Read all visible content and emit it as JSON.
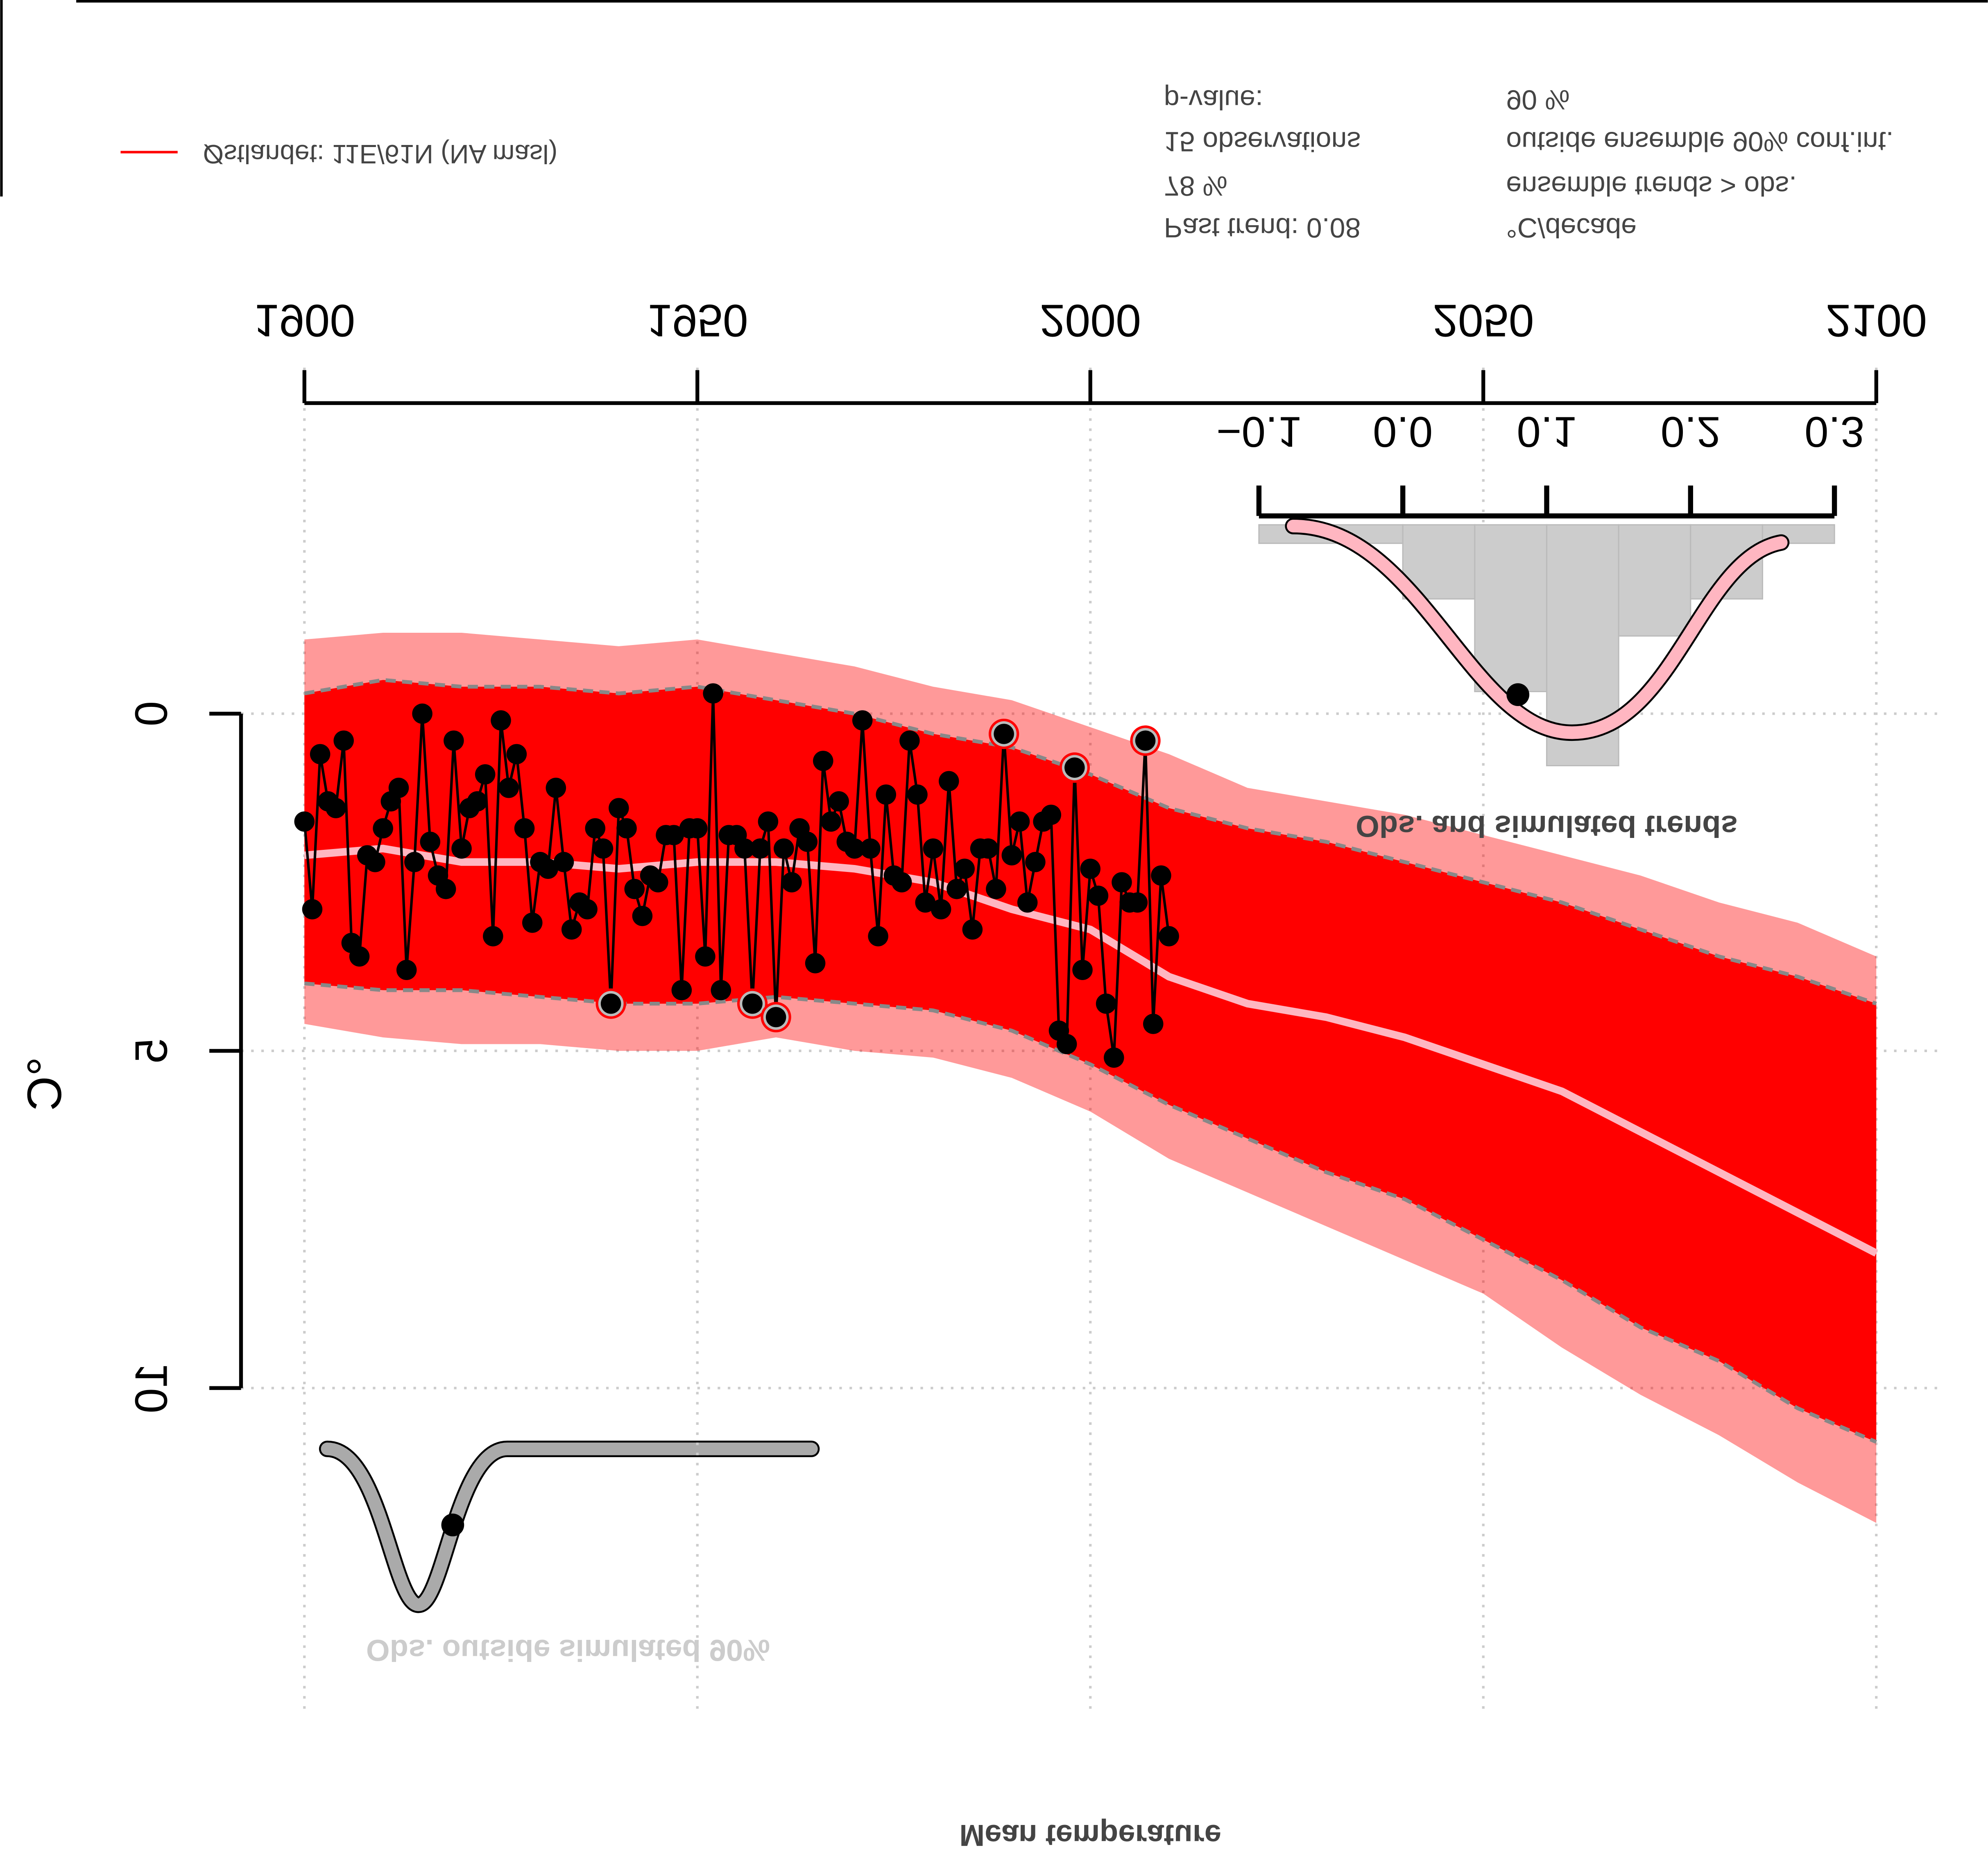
{
  "chart_data": {
    "type": "line",
    "title": "Mean temperature",
    "ylabel": "°C",
    "xlim": [
      1900,
      2100
    ],
    "xticks": [
      1900,
      1950,
      2000,
      2050,
      2100
    ],
    "ylim": [
      -5,
      15
    ],
    "yticks": [
      0,
      5,
      10
    ],
    "grid": true,
    "ensemble": {
      "name": "Østlandet: 11E/61N (NA masl)",
      "color": "#ff0000",
      "x": [
        1900,
        1910,
        1920,
        1930,
        1940,
        1950,
        1960,
        1970,
        1980,
        1990,
        2000,
        2010,
        2020,
        2030,
        2040,
        2050,
        2060,
        2070,
        2080,
        2090,
        2100
      ],
      "median": [
        2.1,
        2.0,
        2.2,
        2.2,
        2.3,
        2.2,
        2.2,
        2.3,
        2.5,
        2.9,
        3.2,
        3.9,
        4.3,
        4.5,
        4.8,
        5.2,
        5.6,
        6.2,
        6.8,
        7.4,
        8.0
      ],
      "lower": [
        -0.3,
        -0.5,
        -0.4,
        -0.4,
        -0.3,
        -0.4,
        -0.2,
        0.0,
        0.3,
        0.5,
        0.9,
        1.4,
        1.7,
        1.9,
        2.2,
        2.5,
        2.8,
        3.2,
        3.6,
        3.9,
        4.3
      ],
      "upper": [
        4.0,
        4.1,
        4.1,
        4.2,
        4.3,
        4.3,
        4.2,
        4.3,
        4.4,
        4.7,
        5.2,
        5.8,
        6.3,
        6.8,
        7.2,
        7.8,
        8.4,
        9.1,
        9.6,
        10.3,
        10.8
      ],
      "min": [
        -1.1,
        -1.2,
        -1.2,
        -1.1,
        -1.0,
        -1.1,
        -0.9,
        -0.7,
        -0.4,
        -0.2,
        0.2,
        0.6,
        1.1,
        1.3,
        1.5,
        1.8,
        2.1,
        2.4,
        2.8,
        3.1,
        3.6
      ],
      "max": [
        4.6,
        4.8,
        4.9,
        4.9,
        5.0,
        5.0,
        4.8,
        5.0,
        5.1,
        5.4,
        5.9,
        6.6,
        7.1,
        7.6,
        8.1,
        8.6,
        9.4,
        10.1,
        10.7,
        11.4,
        12.0
      ]
    },
    "observations": {
      "x": [
        1900,
        1901,
        1902,
        1903,
        1904,
        1905,
        1906,
        1907,
        1908,
        1909,
        1910,
        1911,
        1912,
        1913,
        1914,
        1915,
        1916,
        1917,
        1918,
        1919,
        1920,
        1921,
        1922,
        1923,
        1924,
        1925,
        1926,
        1927,
        1928,
        1929,
        1930,
        1931,
        1932,
        1933,
        1934,
        1935,
        1936,
        1937,
        1938,
        1939,
        1940,
        1941,
        1942,
        1943,
        1944,
        1945,
        1946,
        1947,
        1948,
        1949,
        1950,
        1951,
        1952,
        1953,
        1954,
        1955,
        1956,
        1957,
        1958,
        1959,
        1960,
        1961,
        1962,
        1963,
        1964,
        1965,
        1966,
        1967,
        1968,
        1969,
        1970,
        1971,
        1972,
        1973,
        1974,
        1975,
        1976,
        1977,
        1978,
        1979,
        1980,
        1981,
        1982,
        1983,
        1984,
        1985,
        1986,
        1987,
        1988,
        1989,
        1990,
        1991,
        1992,
        1993,
        1994,
        1995,
        1996,
        1997,
        1998,
        1999,
        2000,
        2001,
        2002,
        2003,
        2004,
        2005,
        2006,
        2007,
        2008,
        2009,
        2010
      ],
      "values": [
        1.6,
        2.9,
        0.6,
        1.3,
        1.4,
        0.4,
        3.4,
        3.6,
        2.1,
        2.2,
        1.7,
        1.3,
        1.1,
        3.8,
        2.2,
        0.0,
        1.9,
        2.4,
        2.6,
        0.4,
        2.0,
        1.4,
        1.3,
        0.9,
        3.3,
        0.1,
        1.1,
        0.6,
        1.7,
        3.1,
        2.2,
        2.3,
        1.1,
        2.2,
        3.2,
        2.8,
        2.9,
        1.7,
        2.0,
        4.3,
        1.4,
        1.7,
        2.6,
        3.0,
        2.4,
        2.5,
        1.8,
        1.8,
        4.1,
        1.7,
        1.7,
        3.6,
        -0.3,
        4.1,
        1.8,
        1.8,
        2.0,
        4.3,
        2.0,
        1.6,
        4.5,
        2.0,
        2.5,
        1.7,
        1.9,
        3.7,
        0.7,
        1.6,
        1.3,
        1.9,
        2.0,
        0.1,
        2.0,
        3.3,
        1.2,
        2.4,
        2.5,
        0.4,
        1.2,
        2.8,
        2.0,
        2.9,
        1.0,
        2.6,
        2.3,
        3.2,
        2.0,
        2.0,
        2.6,
        0.3,
        2.1,
        1.6,
        2.8,
        2.2,
        1.6,
        1.5,
        4.7,
        4.9,
        0.8,
        3.8,
        2.3,
        2.7,
        4.3,
        5.1,
        2.5,
        2.8,
        2.8,
        0.4,
        4.6,
        2.4,
        3.3
      ]
    },
    "inset": {
      "type": "histogram",
      "title": "Obs. and simulated trends",
      "bins": [
        -0.1,
        0.0,
        0.05,
        0.1,
        0.15,
        0.2,
        0.25,
        0.3
      ],
      "values": [
        1,
        4,
        9,
        13,
        6,
        4,
        1
      ],
      "color": "#cccccc",
      "xlim": [
        -0.1,
        0.3
      ],
      "xticks": [
        {
          "value": -0.1,
          "label": "−0.1"
        },
        {
          "value": 0,
          "label": "0.0"
        },
        0.1,
        0.2,
        0.3
      ],
      "past_trend": 0.08,
      "stats": [
        [
          "Past trend: 0.08",
          "°C/decade"
        ],
        [
          "78 %",
          "ensemble trends > obs."
        ],
        [
          "15 observations",
          "outside ensemble 90% conf.int."
        ],
        [
          "p-value:",
          "90 %"
        ]
      ]
    },
    "gauge_label": "Obs. outside simulated 90%"
  }
}
